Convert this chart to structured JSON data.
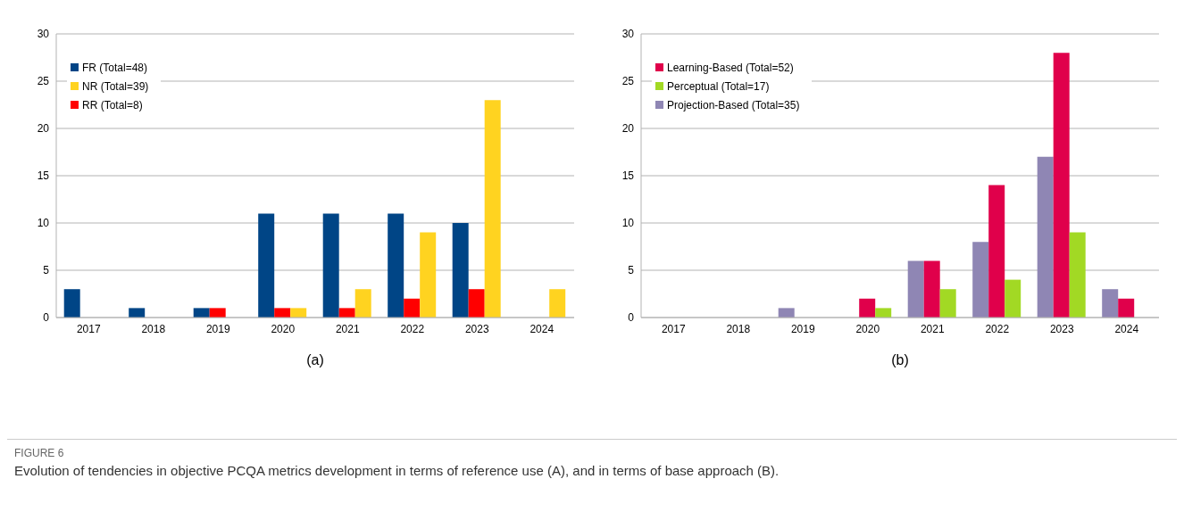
{
  "chart_data": [
    {
      "type": "bar",
      "xlabel": "(a)",
      "categories": [
        "2017",
        "2018",
        "2019",
        "2020",
        "2021",
        "2022",
        "2023",
        "2024"
      ],
      "series": [
        {
          "name": "FR (Total=48)",
          "color": "#004586",
          "values": [
            3,
            1,
            1,
            11,
            11,
            11,
            10,
            0
          ]
        },
        {
          "name": "RR (Total=8)",
          "color": "#ff0000",
          "values": [
            0,
            0,
            1,
            1,
            1,
            2,
            3,
            0
          ]
        },
        {
          "name": "NR (Total=39)",
          "color": "#ffd320",
          "values": [
            0,
            0,
            0,
            1,
            3,
            9,
            23,
            3
          ]
        }
      ],
      "ylim": [
        0,
        30
      ],
      "yticks": [
        0,
        5,
        10,
        15,
        20,
        25,
        30
      ],
      "grid": "y",
      "legend": "top left",
      "annotations": [
        "FIGURE 6",
        "Evolution of tendencies in objective PCQA metrics development in terms of reference use (A), and in terms of base approach (B)."
      ]
    },
    {
      "type": "bar",
      "xlabel": "(b)",
      "categories": [
        "2017",
        "2018",
        "2019",
        "2020",
        "2021",
        "2022",
        "2023",
        "2024"
      ],
      "series": [
        {
          "name": "Projection-Based (Total=35)",
          "color": "#8f86b4",
          "values": [
            0,
            0,
            1,
            0,
            6,
            8,
            17,
            3
          ]
        },
        {
          "name": "Learning-Based (Total=52)",
          "color": "#e0004b",
          "values": [
            0,
            0,
            0,
            2,
            6,
            14,
            28,
            2
          ]
        },
        {
          "name": "Perceptual (Total=17)",
          "color": "#a2d924",
          "values": [
            0,
            0,
            0,
            1,
            3,
            4,
            9,
            0
          ]
        }
      ],
      "ylim": [
        0,
        30
      ],
      "yticks": [
        0,
        5,
        10,
        15,
        20,
        25,
        30
      ],
      "grid": "y",
      "legend": "top left"
    }
  ]
}
